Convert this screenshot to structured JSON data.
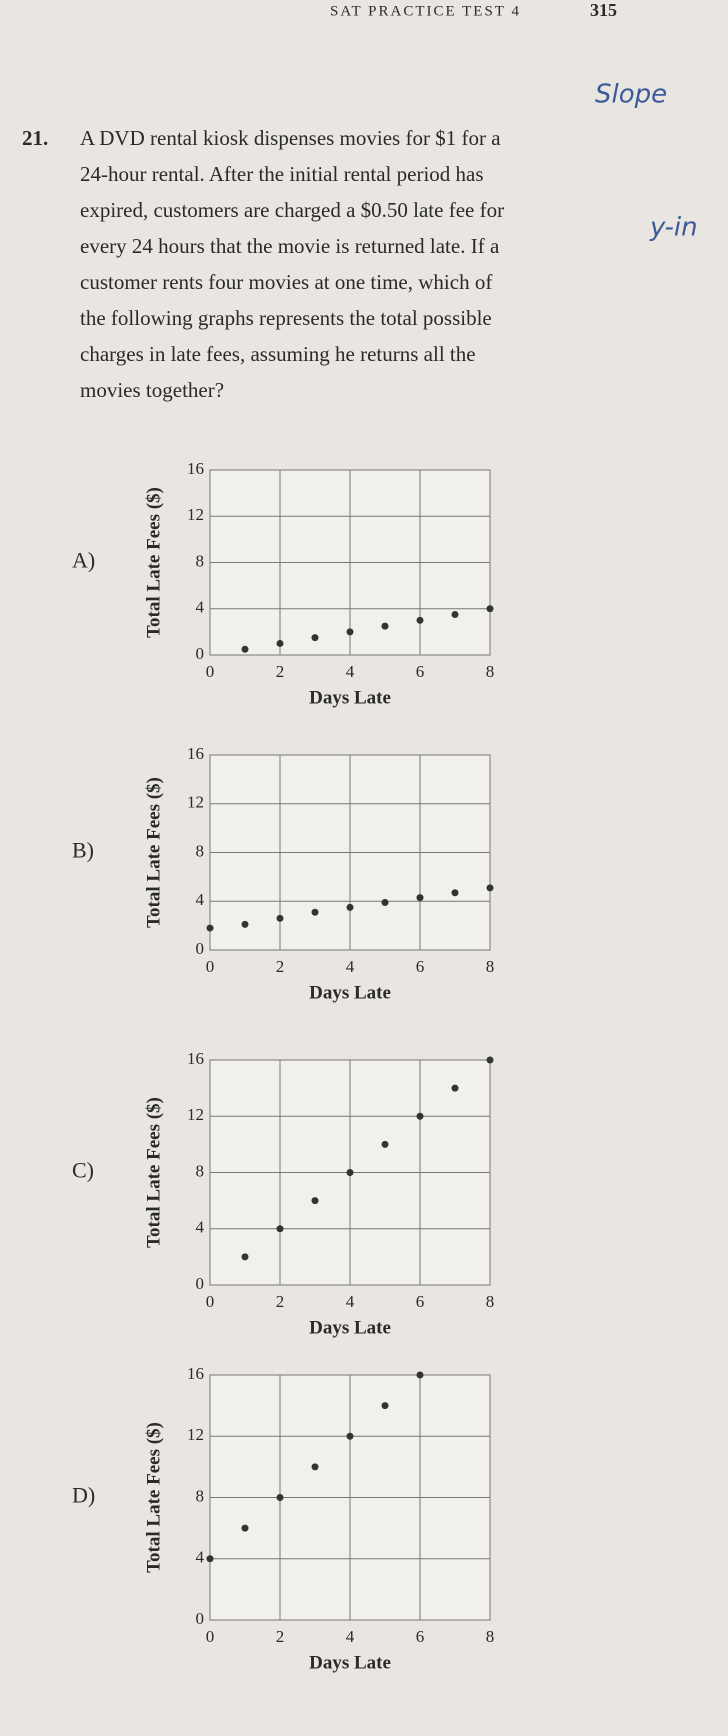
{
  "header": {
    "test": "SAT PRACTICE TEST 4",
    "page": "315"
  },
  "annotations": [
    "Slope",
    "y-in"
  ],
  "question": {
    "number": "21.",
    "lines": [
      "A DVD rental kiosk dispenses movies for $1 for a",
      "24-hour rental. After the initial rental period has",
      "expired, customers are charged a $0.50 late fee for",
      "every 24 hours that the movie is returned late. If a",
      "customer rents four movies at one time, which of",
      "the following graphs represents the total possible",
      "charges in late fees, assuming he returns all the",
      "movies together?"
    ]
  },
  "chart_data": [
    {
      "type": "scatter",
      "label": "A)",
      "xlabel": "Days Late",
      "ylabel": "Total Late Fees ($)",
      "color": "#333333",
      "x": [
        1,
        2,
        3,
        4,
        5,
        6,
        7,
        8
      ],
      "values": [
        0.5,
        1,
        1.5,
        2,
        2.5,
        3,
        3.5,
        4
      ],
      "xlim": [
        0,
        8
      ],
      "ylim": [
        0,
        16
      ],
      "xticks": [
        0,
        2,
        4,
        6,
        8
      ],
      "yticks": [
        0,
        4,
        8,
        12,
        16
      ],
      "grid": true
    },
    {
      "type": "scatter",
      "label": "B)",
      "xlabel": "Days Late",
      "ylabel": "Total Late Fees ($)",
      "color": "#333333",
      "x": [
        0,
        1,
        2,
        3,
        4,
        5,
        6,
        7,
        8
      ],
      "values": [
        1.8,
        2.1,
        2.6,
        3.1,
        3.5,
        3.9,
        4.3,
        4.7,
        5.1
      ],
      "xlim": [
        0,
        8
      ],
      "ylim": [
        0,
        16
      ],
      "xticks": [
        0,
        2,
        4,
        6,
        8
      ],
      "yticks": [
        0,
        4,
        8,
        12,
        16
      ],
      "grid": true
    },
    {
      "type": "scatter",
      "label": "C)",
      "xlabel": "Days Late",
      "ylabel": "Total Late Fees ($)",
      "color": "#333333",
      "x": [
        1,
        2,
        3,
        4,
        5,
        6,
        7,
        8
      ],
      "values": [
        2,
        4,
        6,
        8,
        10,
        12,
        14,
        16
      ],
      "xlim": [
        0,
        8
      ],
      "ylim": [
        0,
        16
      ],
      "xticks": [
        0,
        2,
        4,
        6,
        8
      ],
      "yticks": [
        0,
        4,
        8,
        12,
        16
      ],
      "grid": true
    },
    {
      "type": "scatter",
      "label": "D)",
      "xlabel": "Days Late",
      "ylabel": "Total Late Fees ($)",
      "color": "#333333",
      "x": [
        0,
        1,
        2,
        3,
        4,
        5,
        6
      ],
      "values": [
        4,
        6,
        8,
        10,
        12,
        14,
        16
      ],
      "xlim": [
        0,
        8
      ],
      "ylim": [
        0,
        16
      ],
      "xticks": [
        0,
        2,
        4,
        6,
        8
      ],
      "yticks": [
        0,
        4,
        8,
        12,
        16
      ],
      "grid": true
    }
  ]
}
